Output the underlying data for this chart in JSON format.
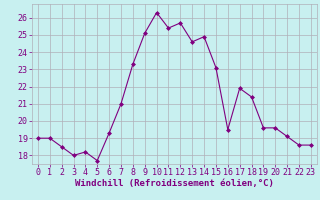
{
  "x": [
    0,
    1,
    2,
    3,
    4,
    5,
    6,
    7,
    8,
    9,
    10,
    11,
    12,
    13,
    14,
    15,
    16,
    17,
    18,
    19,
    20,
    21,
    22,
    23
  ],
  "y": [
    19.0,
    19.0,
    18.5,
    18.0,
    18.2,
    17.7,
    19.3,
    21.0,
    23.3,
    25.1,
    26.3,
    25.4,
    25.7,
    24.6,
    24.9,
    23.1,
    19.5,
    21.9,
    21.4,
    19.6,
    19.6,
    19.1,
    18.6,
    18.6
  ],
  "line_color": "#800080",
  "marker": "D",
  "marker_size": 2.0,
  "bg_color": "#c8f0f0",
  "grid_color": "#b0b0b8",
  "xlabel": "Windchill (Refroidissement éolien,°C)",
  "xlim": [
    -0.5,
    23.5
  ],
  "ylim": [
    17.5,
    26.8
  ],
  "yticks": [
    18,
    19,
    20,
    21,
    22,
    23,
    24,
    25,
    26
  ],
  "xticks": [
    0,
    1,
    2,
    3,
    4,
    5,
    6,
    7,
    8,
    9,
    10,
    11,
    12,
    13,
    14,
    15,
    16,
    17,
    18,
    19,
    20,
    21,
    22,
    23
  ],
  "tick_color": "#800080",
  "label_color": "#800080",
  "font_size": 6.0,
  "xlabel_fontsize": 6.5
}
